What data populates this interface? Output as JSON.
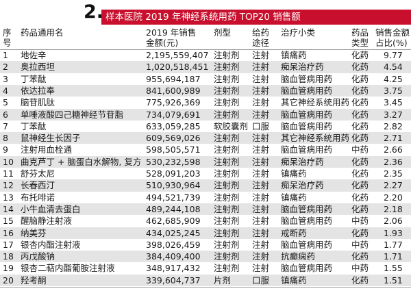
{
  "title": {
    "number": "2.",
    "text": "样本医院 2019 年神经系统用药 TOP20 销售额"
  },
  "header": {
    "idx": [
      "序",
      "号"
    ],
    "name": "药品通用名",
    "amount": [
      "2019 年销售",
      "金额(元)"
    ],
    "form": "剂型",
    "route": [
      "给药",
      "途径"
    ],
    "sub": "治疗小类",
    "type": [
      "药品",
      "类型"
    ],
    "pct": [
      "销售金额",
      "占比(%)"
    ]
  },
  "colors": {
    "accent": "#c8102e",
    "shade": "#e4e4e4"
  },
  "rows": [
    {
      "idx": "1",
      "name": "地佐辛",
      "amount": "2,195,559,407",
      "form": "注射剂",
      "route": "注射",
      "sub": "镇痛药",
      "type": "化药",
      "pct": "9.77"
    },
    {
      "idx": "2",
      "name": "奥拉西坦",
      "amount": "1,020,518,451",
      "form": "注射剂",
      "route": "注射",
      "sub": "痴呆治疗药",
      "type": "化药",
      "pct": "4.54"
    },
    {
      "idx": "3",
      "name": "丁苯酞",
      "amount": "955,694,187",
      "form": "注射剂",
      "route": "注射",
      "sub": "脑血管病用药",
      "type": "化药",
      "pct": "4.25"
    },
    {
      "idx": "4",
      "name": "依达拉奉",
      "amount": "841,600,989",
      "form": "注射剂",
      "route": "注射",
      "sub": "脑血管病用药",
      "type": "化药",
      "pct": "3.75"
    },
    {
      "idx": "5",
      "name": "脑苷肌肽",
      "amount": "775,926,369",
      "form": "注射剂",
      "route": "注射",
      "sub": "其它神经系统用药",
      "type": "化药",
      "pct": "3.45"
    },
    {
      "idx": "6",
      "name": "单唾液酸四己糖神经节苷脂",
      "amount": "734,079,691",
      "form": "注射剂",
      "route": "注射",
      "sub": "脑血管病用药",
      "type": "化药",
      "pct": "3.27"
    },
    {
      "idx": "7",
      "name": "丁苯酞",
      "amount": "633,059,285",
      "form": "软胶囊剂",
      "route": "口服",
      "sub": "脑血管病用药",
      "type": "化药",
      "pct": "2.82"
    },
    {
      "idx": "8",
      "name": "鼠神经生长因子",
      "amount": "609,569,026",
      "form": "注射剂",
      "route": "注射",
      "sub": "其它神经系统用药",
      "type": "化药",
      "pct": "2.71"
    },
    {
      "idx": "9",
      "name": "注射用血栓通",
      "amount": "598,505,571",
      "form": "注射剂",
      "route": "注射",
      "sub": "脑血管病用药",
      "type": "中药",
      "pct": "2.66"
    },
    {
      "idx": "10",
      "name": "曲克芦丁 + 脑蛋白水解物, 复方",
      "amount": "530,232,598",
      "form": "注射剂",
      "route": "注射",
      "sub": "痴呆治疗药",
      "type": "化药",
      "pct": "2.36"
    },
    {
      "idx": "11",
      "name": "舒芬太尼",
      "amount": "528,091,203",
      "form": "注射剂",
      "route": "注射",
      "sub": "镇痛药",
      "type": "化药",
      "pct": "2.35"
    },
    {
      "idx": "12",
      "name": "长春西汀",
      "amount": "510,930,964",
      "form": "注射剂",
      "route": "注射",
      "sub": "痴呆治疗药",
      "type": "化药",
      "pct": "2.27"
    },
    {
      "idx": "13",
      "name": "布托啡诺",
      "amount": "494,521,739",
      "form": "注射剂",
      "route": "注射",
      "sub": "镇痛药",
      "type": "化药",
      "pct": "2.20"
    },
    {
      "idx": "14",
      "name": "小牛血清去蛋白",
      "amount": "489,244,108",
      "form": "注射剂",
      "route": "注射",
      "sub": "脑血管病用药",
      "type": "化药",
      "pct": "2.18"
    },
    {
      "idx": "15",
      "name": "醒脑静注射液",
      "amount": "462,685,909",
      "form": "注射剂",
      "route": "注射",
      "sub": "脑血管病用药",
      "type": "中药",
      "pct": "2.06"
    },
    {
      "idx": "16",
      "name": "纳美芬",
      "amount": "434,025,245",
      "form": "注射剂",
      "route": "注射",
      "sub": "戒断药",
      "type": "化药",
      "pct": "1.93"
    },
    {
      "idx": "17",
      "name": "银杏内酯注射液",
      "amount": "398,026,459",
      "form": "注射剂",
      "route": "注射",
      "sub": "脑血管病用药",
      "type": "中药",
      "pct": "1.77"
    },
    {
      "idx": "18",
      "name": "丙戊酸钠",
      "amount": "384,409,400",
      "form": "注射剂",
      "route": "注射",
      "sub": "抗癫痫药",
      "type": "化药",
      "pct": "1.71"
    },
    {
      "idx": "19",
      "name": "银杏二萜内酯葡胺注射液",
      "amount": "348,917,432",
      "form": "注射剂",
      "route": "注射",
      "sub": "脑血管病用药",
      "type": "中药",
      "pct": "1.55"
    },
    {
      "idx": "20",
      "name": "羟考酮",
      "amount": "339,604,737",
      "form": "片剂",
      "route": "口服",
      "sub": "镇痛药",
      "type": "化药",
      "pct": "1.51"
    }
  ]
}
